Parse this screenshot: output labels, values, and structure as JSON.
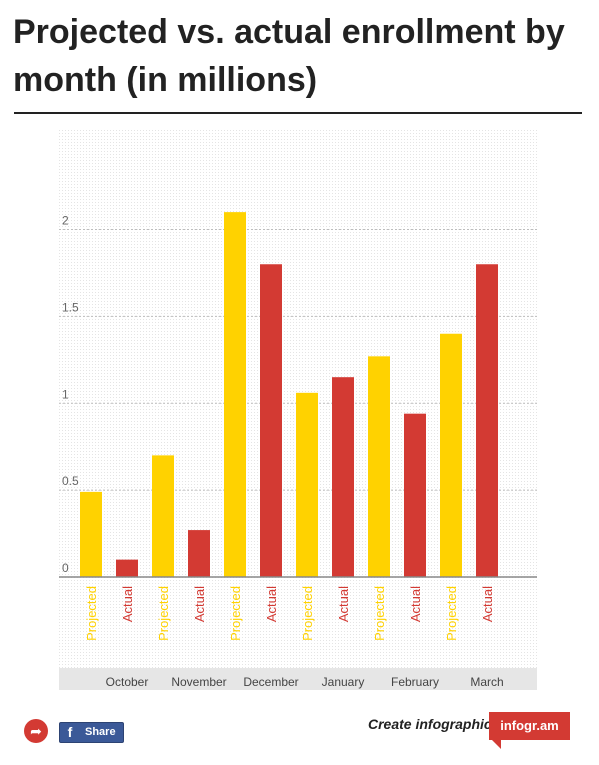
{
  "title": "Projected vs. actual enrollment by month (in millions)",
  "chart_data": {
    "type": "bar",
    "categories": [
      "October",
      "November",
      "December",
      "January",
      "February",
      "March"
    ],
    "series": [
      {
        "name": "Projected",
        "color": "#ffd200",
        "values": [
          0.49,
          0.7,
          2.1,
          1.06,
          1.27,
          1.4
        ]
      },
      {
        "name": "Actual",
        "color": "#d33a33",
        "values": [
          0.1,
          0.27,
          1.8,
          1.15,
          0.94,
          1.8
        ]
      }
    ],
    "ylim": [
      0,
      2.4
    ],
    "yticks": [
      0,
      0.5,
      1,
      1.5,
      2
    ],
    "ytick_labels": [
      "0",
      "0.5",
      "1",
      "1.5",
      "2"
    ],
    "grid": true,
    "legend": "bar labels below axis"
  },
  "footer": {
    "share_icon": "share-arrow-icon",
    "facebook_icon": "facebook-icon",
    "facebook_label": "Share",
    "create_text": "Create infographics",
    "brand": "infogr.am"
  }
}
